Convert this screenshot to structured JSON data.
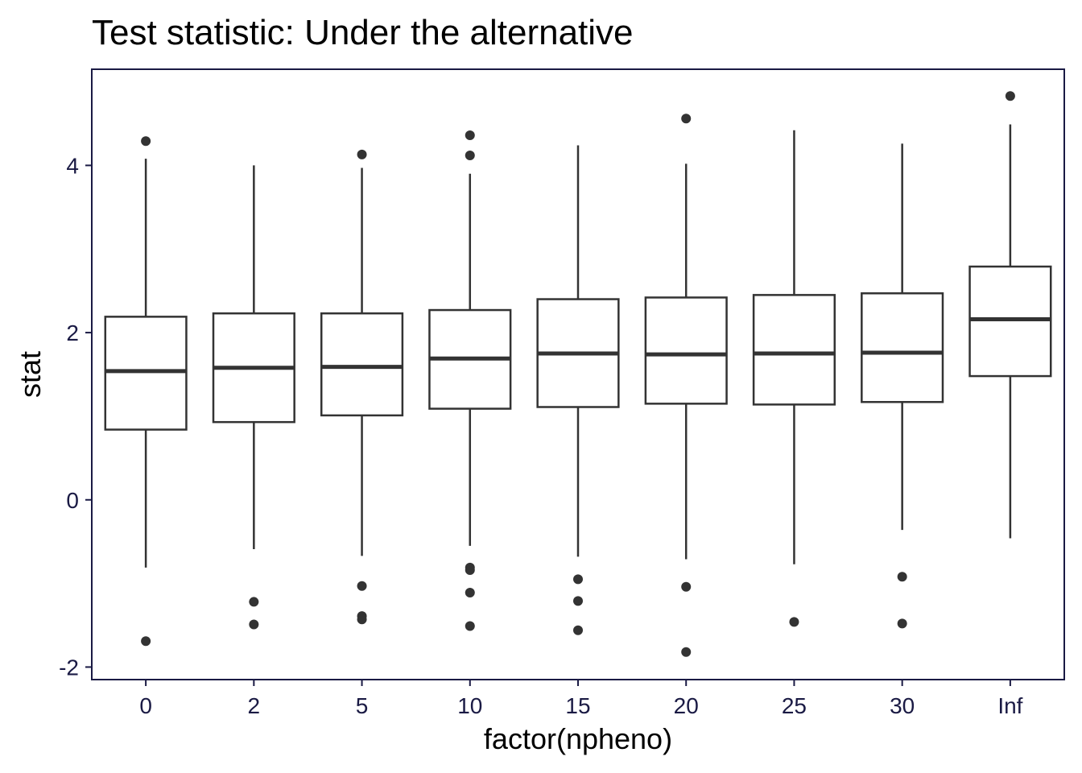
{
  "chart_data": {
    "type": "boxplot",
    "title": "Test statistic: Under the alternative",
    "xlabel": "factor(npheno)",
    "ylabel": "stat",
    "ylim": [
      -2.15,
      5.15
    ],
    "yticks": [
      -2,
      0,
      2,
      4
    ],
    "categories": [
      "0",
      "2",
      "5",
      "10",
      "15",
      "20",
      "25",
      "30",
      "Inf"
    ],
    "boxes": [
      {
        "category": "0",
        "whisker_low": -0.81,
        "q1": 0.84,
        "median": 1.54,
        "q3": 2.19,
        "whisker_high": 4.08,
        "outliers": [
          4.29,
          -1.69
        ]
      },
      {
        "category": "2",
        "whisker_low": -0.59,
        "q1": 0.93,
        "median": 1.58,
        "q3": 2.23,
        "whisker_high": 4.0,
        "outliers": [
          -1.22,
          -1.49
        ]
      },
      {
        "category": "5",
        "whisker_low": -0.67,
        "q1": 1.01,
        "median": 1.59,
        "q3": 2.23,
        "whisker_high": 3.97,
        "outliers": [
          4.13,
          -1.03,
          -1.39,
          -1.43
        ]
      },
      {
        "category": "10",
        "whisker_low": -0.55,
        "q1": 1.09,
        "median": 1.69,
        "q3": 2.27,
        "whisker_high": 3.9,
        "outliers": [
          4.36,
          4.12,
          -0.81,
          -0.84,
          -1.11,
          -1.51
        ]
      },
      {
        "category": "15",
        "whisker_low": -0.68,
        "q1": 1.11,
        "median": 1.75,
        "q3": 2.4,
        "whisker_high": 4.24,
        "outliers": [
          -0.95,
          -1.21,
          -1.56
        ]
      },
      {
        "category": "20",
        "whisker_low": -0.71,
        "q1": 1.15,
        "median": 1.74,
        "q3": 2.42,
        "whisker_high": 4.02,
        "outliers": [
          4.56,
          -1.04,
          -1.82
        ]
      },
      {
        "category": "25",
        "whisker_low": -0.77,
        "q1": 1.14,
        "median": 1.75,
        "q3": 2.45,
        "whisker_high": 4.42,
        "outliers": [
          -1.46
        ]
      },
      {
        "category": "30",
        "whisker_low": -0.36,
        "q1": 1.17,
        "median": 1.76,
        "q3": 2.47,
        "whisker_high": 4.26,
        "outliers": [
          -0.92,
          -1.48
        ]
      },
      {
        "category": "Inf",
        "whisker_low": -0.46,
        "q1": 1.48,
        "median": 2.16,
        "q3": 2.79,
        "whisker_high": 4.49,
        "outliers": [
          4.83
        ]
      }
    ],
    "grid": false,
    "colors": {
      "box_stroke": "#333333",
      "axis": "#1a1a44",
      "point": "#333333"
    }
  }
}
